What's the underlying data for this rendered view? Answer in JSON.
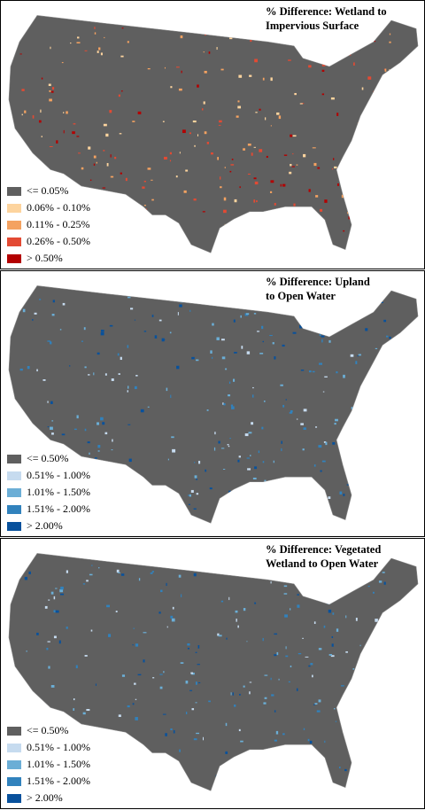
{
  "panels": [
    {
      "title_lines": [
        "% Difference: Wetland to",
        "Impervious Surface"
      ],
      "legend": [
        {
          "label": "<= 0.05%",
          "color": "#5f5f5f"
        },
        {
          "label": "0.06% - 0.10%",
          "color": "#fdd49e"
        },
        {
          "label": "0.11% - 0.25%",
          "color": "#f4a261"
        },
        {
          "label": "0.26% - 0.50%",
          "color": "#e34a33"
        },
        {
          "label": "> 0.50%",
          "color": "#b30000"
        }
      ]
    },
    {
      "title_lines": [
        "% Difference: Upland",
        "to Open Water"
      ],
      "legend": [
        {
          "label": "<= 0.50%",
          "color": "#5f5f5f"
        },
        {
          "label": "0.51% - 1.00%",
          "color": "#c6dbef"
        },
        {
          "label": "1.01% - 1.50%",
          "color": "#6baed6"
        },
        {
          "label": "1.51% - 2.00%",
          "color": "#3182bd"
        },
        {
          "label": "> 2.00%",
          "color": "#08519c"
        }
      ]
    },
    {
      "title_lines": [
        "% Difference: Vegetated",
        "Wetland to Open Water"
      ],
      "legend": [
        {
          "label": "<= 0.50%",
          "color": "#5f5f5f"
        },
        {
          "label": "0.51% - 1.00%",
          "color": "#c6dbef"
        },
        {
          "label": "1.01% - 1.50%",
          "color": "#6baed6"
        },
        {
          "label": "1.51% - 2.00%",
          "color": "#3182bd"
        },
        {
          "label": "> 2.00%",
          "color": "#08519c"
        }
      ]
    }
  ]
}
